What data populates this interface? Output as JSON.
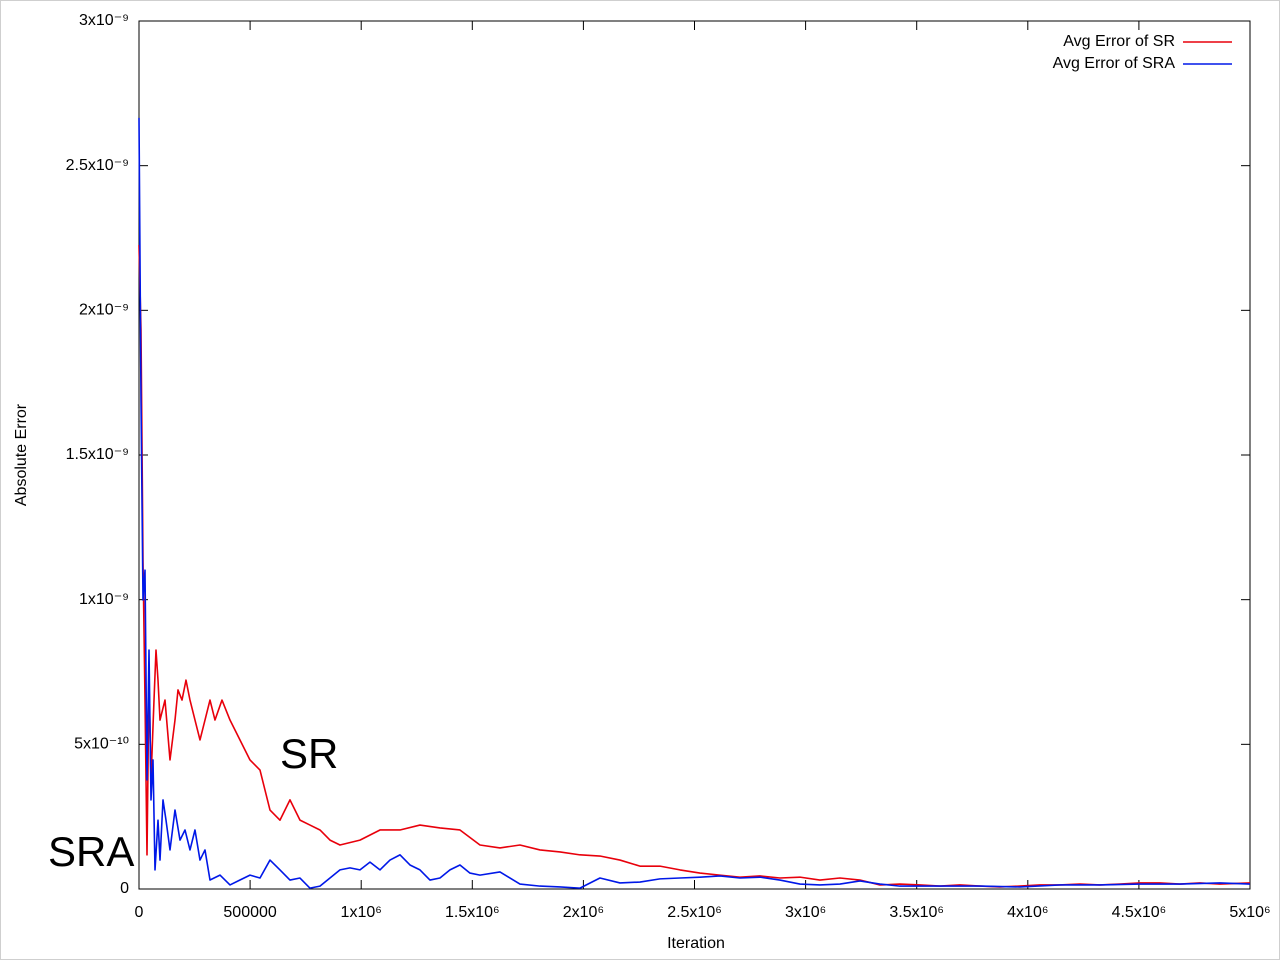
{
  "chart_data": {
    "type": "line",
    "x_label": "Iteration",
    "y_label": "Absolute Error",
    "xlim": [
      0,
      5000000
    ],
    "ylim": [
      0,
      3e-09
    ],
    "xticks": [
      0,
      500000,
      {
        "value": 1000000,
        "label": "1x10⁶"
      },
      {
        "value": 1500000,
        "label": "1.5x10⁶"
      },
      {
        "value": 2000000,
        "label": "2x10⁶"
      },
      {
        "value": 2500000,
        "label": "2.5x10⁶"
      },
      {
        "value": 3000000,
        "label": "3x10⁶"
      },
      {
        "value": 3500000,
        "label": "3.5x10⁶"
      },
      {
        "value": 4000000,
        "label": "4x10⁶"
      },
      {
        "value": 4500000,
        "label": "4.5x10⁶"
      },
      {
        "value": 5000000,
        "label": "5x10⁶"
      }
    ],
    "yticks": [
      0,
      {
        "value": 5e-10,
        "label": "5x10⁻¹⁰"
      },
      {
        "value": 1e-09,
        "label": "1x10⁻⁹"
      },
      {
        "value": 1.5e-09,
        "label": "1.5x10⁻⁹"
      },
      {
        "value": 2e-09,
        "label": "2x10⁻⁹"
      },
      {
        "value": 2.5e-09,
        "label": "2.5x10⁻⁹"
      },
      {
        "value": 3e-09,
        "label": "3x10⁻⁹"
      }
    ],
    "legend": "top-right",
    "annotations": [
      {
        "text": "SR",
        "color": "#e8000b"
      },
      {
        "text": "SRA",
        "color": "#0018e8"
      }
    ],
    "series": [
      {
        "name": "Avg Error of SR",
        "color": "#e8000b",
        "x": [
          0,
          9000,
          18000,
          27000,
          36000,
          45000,
          54000,
          67500,
          76500,
          85500,
          94500,
          117000,
          139500,
          162000,
          175500,
          193500,
          211500,
          229500,
          252000,
          274500,
          297000,
          319500,
          342000,
          373500,
          409500,
          454500,
          499500,
          544500,
          589500,
          634500,
          679500,
          724500,
          769500,
          814500,
          859500,
          904500,
          994500,
          1084500,
          1174500,
          1264500,
          1354500,
          1444500,
          1534500,
          1624500,
          1714500,
          1804500,
          1894500,
          1984500,
          2074500,
          2164500,
          2254500,
          2344500,
          2434500,
          2524500,
          2614500,
          2704500,
          2794500,
          2884500,
          2974500,
          3064500,
          3154500,
          3244500,
          3334500,
          3424500,
          3514500,
          3604500,
          3694500,
          3784500,
          3874500,
          3964500,
          4054500,
          4144500,
          4234500,
          4324500,
          4414500,
          4504500,
          4594500,
          4684500,
          4774500,
          4864500,
          5000000
        ],
        "values": [
          2.226e-09,
          1.932e-09,
          1.137e-09,
          6.53e-10,
          1.18e-10,
          7.22e-10,
          3.77e-10,
          6.53e-10,
          8.26e-10,
          7.22e-10,
          5.84e-10,
          6.53e-10,
          4.46e-10,
          5.84e-10,
          6.88e-10,
          6.53e-10,
          7.22e-10,
          6.53e-10,
          5.84e-10,
          5.15e-10,
          5.84e-10,
          6.53e-10,
          5.84e-10,
          6.53e-10,
          5.84e-10,
          5.15e-10,
          4.46e-10,
          4.11e-10,
          2.73e-10,
          2.38e-10,
          3.08e-10,
          2.38e-10,
          2.21e-10,
          2.04e-10,
          1.69e-10,
          1.52e-10,
          1.69e-10,
          2.04e-10,
          2.04e-10,
          2.21e-10,
          2.11e-10,
          2.04e-10,
          1.52e-10,
          1.42e-10,
          1.52e-10,
          1.35e-10,
          1.28e-10,
          1.18e-10,
          1.14e-10,
          1e-10,
          7.9e-11,
          7.9e-11,
          6.6e-11,
          5.5e-11,
          4.8e-11,
          4.1e-11,
          4.5e-11,
          3.8e-11,
          4.1e-11,
          3.1e-11,
          3.8e-11,
          3.1e-11,
          1.4e-11,
          1.7e-11,
          1.4e-11,
          1e-11,
          1.4e-11,
          1e-11,
          7e-12,
          1e-11,
          1.4e-11,
          1.4e-11,
          1.7e-11,
          1.4e-11,
          1.7e-11,
          2.1e-11,
          2.1e-11,
          1.7e-11,
          2.1e-11,
          1.7e-11,
          2.1e-11
        ]
      },
      {
        "name": "Avg Error of SRA",
        "color": "#0018e8",
        "x": [
          0,
          9000,
          18000,
          27000,
          36000,
          45000,
          54000,
          63000,
          72000,
          85500,
          94500,
          108000,
          121500,
          139500,
          162000,
          184500,
          207000,
          229500,
          252000,
          274500,
          297000,
          319500,
          364500,
          409500,
          454500,
          499500,
          544500,
          589500,
          634500,
          679500,
          724500,
          769500,
          814500,
          859500,
          904500,
          949500,
          994500,
          1039500,
          1084500,
          1129500,
          1174500,
          1219500,
          1264500,
          1309500,
          1354500,
          1399500,
          1444500,
          1489500,
          1534500,
          1624500,
          1714500,
          1804500,
          1894500,
          1984500,
          2074500,
          2164500,
          2254500,
          2344500,
          2434500,
          2524500,
          2614500,
          2704500,
          2794500,
          2884500,
          2974500,
          3064500,
          3154500,
          3244500,
          3334500,
          3424500,
          3604500,
          3784500,
          3964500,
          4144500,
          4324500,
          4504500,
          4684500,
          4864500,
          5000000
        ],
        "values": [
          2.665e-09,
          1.69e-09,
          9.99e-10,
          1.102e-09,
          3.77e-10,
          8.26e-10,
          3.08e-10,
          4.46e-10,
          6.6e-11,
          2.38e-10,
          1e-10,
          3.08e-10,
          2.38e-10,
          1.35e-10,
          2.73e-10,
          1.69e-10,
          2.04e-10,
          1.35e-10,
          2.04e-10,
          1e-10,
          1.35e-10,
          3.1e-11,
          4.8e-11,
          1.4e-11,
          3.1e-11,
          4.8e-11,
          3.8e-11,
          1e-10,
          6.6e-11,
          3.1e-11,
          3.8e-11,
          3e-12,
          1e-11,
          3.8e-11,
          6.6e-11,
          7.3e-11,
          6.6e-11,
          9.3e-11,
          6.6e-11,
          1e-10,
          1.18e-10,
          8.3e-11,
          6.6e-11,
          3.1e-11,
          3.8e-11,
          6.6e-11,
          8.3e-11,
          5.5e-11,
          4.8e-11,
          5.9e-11,
          1.7e-11,
          1e-11,
          7e-12,
          3e-12,
          3.8e-11,
          2.1e-11,
          2.4e-11,
          3.5e-11,
          3.8e-11,
          4.1e-11,
          4.5e-11,
          3.8e-11,
          4.1e-11,
          3.1e-11,
          1.7e-11,
          1.4e-11,
          1.7e-11,
          2.8e-11,
          1.7e-11,
          1e-11,
          1e-11,
          1e-11,
          7e-12,
          1.4e-11,
          1.4e-11,
          1.7e-11,
          1.7e-11,
          2.1e-11,
          1.7e-11
        ]
      }
    ]
  }
}
